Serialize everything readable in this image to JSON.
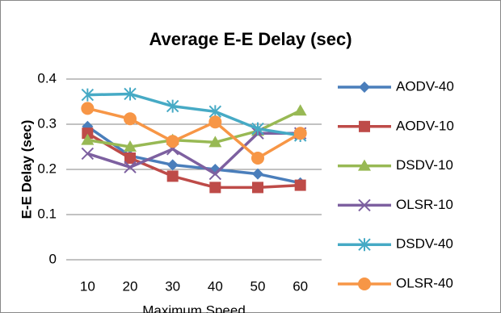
{
  "chart_data": {
    "type": "line",
    "title": "Average E-E Delay (sec)",
    "x_label": "Maximum Speed",
    "y_label": "E-E Delay (sec)",
    "categories": [
      "10",
      "20",
      "30",
      "40",
      "50",
      "60"
    ],
    "series": [
      {
        "name": "AODV-40",
        "color": "#4a7ebb",
        "marker": "diamond",
        "values": [
          0.295,
          0.23,
          0.21,
          0.2,
          0.19,
          0.17
        ]
      },
      {
        "name": "AODV-10",
        "color": "#be4b48",
        "marker": "square",
        "values": [
          0.28,
          0.225,
          0.185,
          0.16,
          0.16,
          0.165
        ]
      },
      {
        "name": "DSDV-10",
        "color": "#98b954",
        "marker": "triangle",
        "values": [
          0.265,
          0.25,
          0.265,
          0.26,
          0.285,
          0.33
        ]
      },
      {
        "name": "OLSR-10",
        "color": "#7d60a0",
        "marker": "x",
        "values": [
          0.235,
          0.205,
          0.245,
          0.19,
          0.28,
          0.28
        ]
      },
      {
        "name": "DSDV-40",
        "color": "#46aac5",
        "marker": "star",
        "values": [
          0.365,
          0.367,
          0.34,
          0.328,
          0.29,
          0.275
        ]
      },
      {
        "name": "OLSR-40",
        "color": "#f79646",
        "marker": "circle",
        "values": [
          0.335,
          0.312,
          0.262,
          0.305,
          0.225,
          0.28
        ]
      }
    ],
    "ylim": [
      0,
      0.4
    ],
    "yticks": [
      0,
      0.1,
      0.2,
      0.3,
      0.4
    ],
    "grid": true,
    "legend": "right"
  }
}
